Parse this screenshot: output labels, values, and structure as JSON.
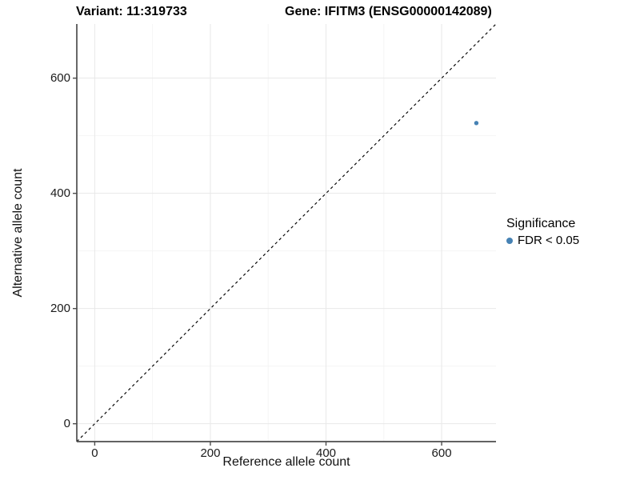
{
  "chart_data": {
    "type": "scatter",
    "title_left": "Variant: 11:319733",
    "title_right": "Gene: IFITM3 (ENSG00000142089)",
    "xlabel": "Reference allele count",
    "ylabel": "Alternative allele count",
    "xlim": [
      -31,
      694
    ],
    "ylim": [
      -31,
      694
    ],
    "x_ticks": [
      0,
      200,
      400,
      600
    ],
    "y_ticks": [
      0,
      200,
      400,
      600
    ],
    "x_minor_ticks": [
      100,
      300,
      500
    ],
    "y_minor_ticks": [
      100,
      300,
      500
    ],
    "grid": "major-and-minor",
    "reference_line": {
      "type": "identity y=x",
      "style": "dashed",
      "color": "#000000"
    },
    "series": [
      {
        "name": "FDR < 0.05",
        "color": "#4682B4",
        "points": [
          {
            "x": 660,
            "y": 522
          }
        ]
      }
    ],
    "legend": {
      "title": "Significance",
      "position": "right",
      "items": [
        {
          "label": "FDR < 0.05",
          "color": "#4682B4"
        }
      ]
    },
    "colors": {
      "background": "#ffffff",
      "grid_major": "#e8e8e8",
      "grid_minor": "#f3f3f3",
      "axis_line": "#4d4d4d",
      "point": "#4682B4",
      "text": "#000000"
    }
  }
}
